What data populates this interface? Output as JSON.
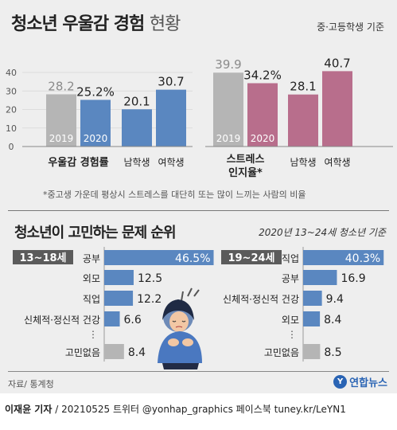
{
  "header": {
    "title_bold": "청소년 우울감 경험",
    "title_light": "현황",
    "subtitle": "중·고등학생 기준"
  },
  "chart_data": [
    {
      "type": "bar",
      "ylim": [
        0,
        40
      ],
      "yticks": [
        "40",
        "30",
        "20",
        "10",
        "0"
      ],
      "groups": [
        {
          "label": "우울감 경험률",
          "bars": [
            {
              "label": "2019",
              "value": 28.2,
              "display": "28.2"
            },
            {
              "label": "2020",
              "value": 25.2,
              "display": "25.2%"
            }
          ]
        },
        {
          "label": "",
          "bars": [
            {
              "label": "남학생",
              "value": 20.1,
              "display": "20.1"
            },
            {
              "label": "여학생",
              "value": 30.7,
              "display": "30.7"
            }
          ]
        }
      ]
    },
    {
      "type": "bar",
      "ylim": [
        0,
        40
      ],
      "groups": [
        {
          "label": "스트레스 인지율*",
          "bars": [
            {
              "label": "2019",
              "value": 39.9,
              "display": "39.9"
            },
            {
              "label": "2020",
              "value": 34.2,
              "display": "34.2%"
            }
          ]
        },
        {
          "label": "",
          "bars": [
            {
              "label": "남학생",
              "value": 28.1,
              "display": "28.1"
            },
            {
              "label": "여학생",
              "value": 40.7,
              "display": "40.7"
            }
          ]
        }
      ]
    },
    {
      "type": "bar",
      "orientation": "horizontal",
      "group_label": "13~18세",
      "categories": [
        "공부",
        "외모",
        "직업",
        "신체적·정신적 건강",
        "고민없음"
      ],
      "values": [
        46.5,
        12.5,
        12.2,
        6.6,
        8.4
      ],
      "display": [
        "46.5%",
        "12.5",
        "12.2",
        "6.6",
        "8.4"
      ],
      "xlim": [
        0,
        47
      ]
    },
    {
      "type": "bar",
      "orientation": "horizontal",
      "group_label": "19~24세",
      "categories": [
        "직업",
        "공부",
        "신체적·정신적 건강",
        "외모",
        "고민없음"
      ],
      "values": [
        40.3,
        16.9,
        9.4,
        8.4,
        8.5
      ],
      "display": [
        "40.3%",
        "16.9",
        "9.4",
        "8.4",
        "8.5"
      ],
      "xlim": [
        0,
        41
      ]
    }
  ],
  "footnote": "*중고생 가운데 평상시 스트레스를 대단히 또는 많이 느끼는 사람의 비율",
  "section2": {
    "title": "청소년이 고민하는 문제 순위",
    "subtitle": "2020년 13~24세  청소년 기준"
  },
  "dots": "⋮",
  "source": "자료/ 통계청",
  "logo": {
    "mark": "Y",
    "name": "연합뉴스"
  },
  "credit": {
    "author": "이재윤 기자",
    "rest": " / 20210525   트위터 @yonhap_graphics  페이스북 tuney.kr/LeYN1"
  },
  "colors": {
    "gray": "#b5b5b5",
    "blue": "#5a87c0",
    "pink": "#b86e8c",
    "label_bg": "#5b5b5b",
    "value_gray": "#8a8a8a"
  }
}
